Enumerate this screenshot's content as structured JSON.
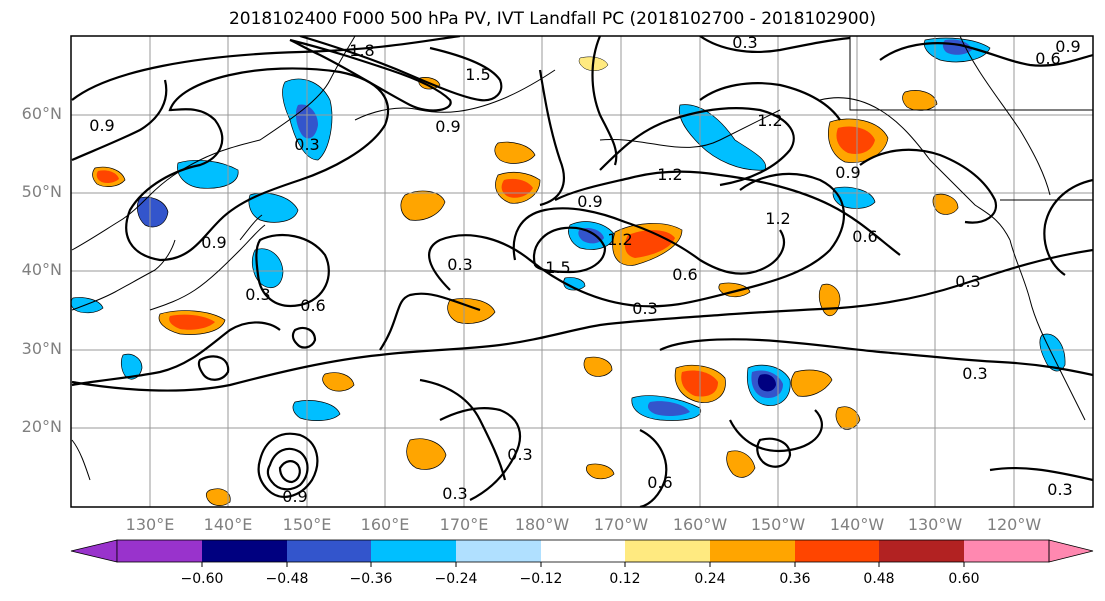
{
  "title": "2018102400 F000 500 hPa PV, IVT Landfall PC (2018102700 - 2018102900)",
  "lat_labels": [
    "60°N",
    "50°N",
    "40°N",
    "30°N",
    "20°N"
  ],
  "lon_labels": [
    "130°E",
    "140°E",
    "150°E",
    "160°E",
    "170°E",
    "180°W",
    "170°W",
    "160°W",
    "150°W",
    "140°W",
    "130°W",
    "120°W"
  ],
  "colorbar": {
    "ticks": [
      "−0.60",
      "−0.48",
      "−0.36",
      "−0.24",
      "−0.12",
      "0.12",
      "0.24",
      "0.36",
      "0.48",
      "0.60"
    ],
    "colors": [
      "#9933cc",
      "#000080",
      "#3355cc",
      "#00bfff",
      "#b0e0ff",
      "#ffffff",
      "#ffea80",
      "#ffa500",
      "#ff4500",
      "#b22222",
      "#ff88b0"
    ]
  },
  "contour_labels": [
    "1.8",
    "1.5",
    "0.9",
    "0.3",
    "0.9",
    "0.6",
    "0.3",
    "0.9",
    "1.2",
    "0.9",
    "1.2",
    "1.5",
    "1.2",
    "0.6",
    "0.3",
    "0.6",
    "0.3",
    "0.3",
    "0.9",
    "0.3",
    "0.3",
    "0.3",
    "0.6",
    "0.3",
    "0.9",
    "0.6",
    "0.9",
    "0.3",
    "1.2"
  ]
}
